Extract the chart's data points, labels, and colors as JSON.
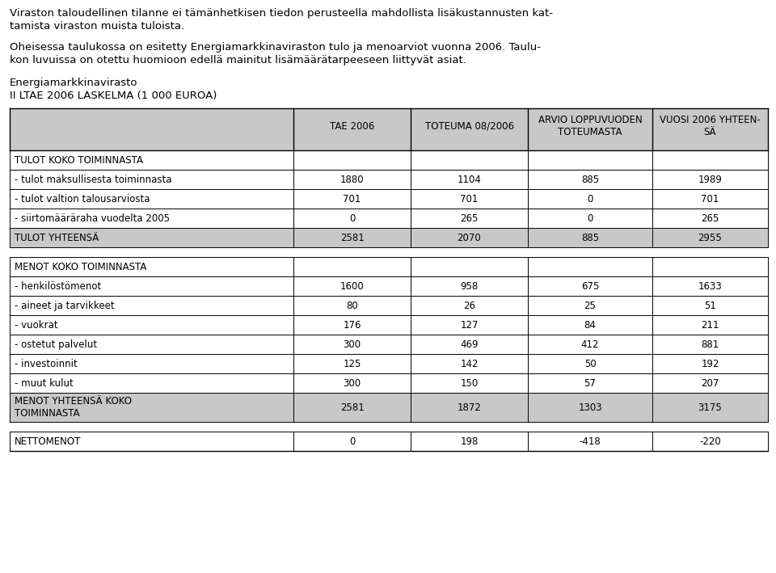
{
  "title_line1": "Energiamarkkinavirasto",
  "title_line2": "II LTAE 2006 LASKELMA (1 000 EUROA)",
  "col_headers": [
    "",
    "TAE 2006",
    "TOTEUMA 08/2006",
    "ARVIO LOPPUVUODEN\nTOTEUMASTA",
    "VUOSI 2006 YHTEEN-\nSÄ"
  ],
  "rows": [
    {
      "label": "TULOT KOKO TOIMINNASTA",
      "values": [
        null,
        null,
        null,
        null
      ],
      "style": "section_header"
    },
    {
      "label": "- tulot maksullisesta toiminnasta",
      "values": [
        1880,
        1104,
        885,
        1989
      ],
      "style": "normal"
    },
    {
      "label": "- tulot valtion talousarviosta",
      "values": [
        701,
        701,
        0,
        701
      ],
      "style": "normal"
    },
    {
      "label": "- siirtomääräraha vuodelta 2005",
      "values": [
        0,
        265,
        0,
        265
      ],
      "style": "normal"
    },
    {
      "label": "TULOT YHTEENSÄ",
      "values": [
        2581,
        2070,
        885,
        2955
      ],
      "style": "subtotal"
    },
    {
      "label": "",
      "values": [
        null,
        null,
        null,
        null
      ],
      "style": "spacer"
    },
    {
      "label": "MENOT KOKO TOIMINNASTA",
      "values": [
        null,
        null,
        null,
        null
      ],
      "style": "section_header"
    },
    {
      "label": "- henkilöstömenot",
      "values": [
        1600,
        958,
        675,
        1633
      ],
      "style": "normal"
    },
    {
      "label": "- aineet ja tarvikkeet",
      "values": [
        80,
        26,
        25,
        51
      ],
      "style": "normal"
    },
    {
      "label": "- vuokrat",
      "values": [
        176,
        127,
        84,
        211
      ],
      "style": "normal"
    },
    {
      "label": "- ostetut palvelut",
      "values": [
        300,
        469,
        412,
        881
      ],
      "style": "normal"
    },
    {
      "label": "- investoinnit",
      "values": [
        125,
        142,
        50,
        192
      ],
      "style": "normal"
    },
    {
      "label": "- muut kulut",
      "values": [
        300,
        150,
        57,
        207
      ],
      "style": "normal"
    },
    {
      "label": "MENOT YHTEENSÄ KOKO\nTOIMINNASTA",
      "values": [
        2581,
        1872,
        1303,
        3175
      ],
      "style": "subtotal"
    },
    {
      "label": "",
      "values": [
        null,
        null,
        null,
        null
      ],
      "style": "spacer"
    },
    {
      "label": "NETTOMENOT",
      "values": [
        0,
        198,
        -418,
        -220
      ],
      "style": "normal"
    }
  ],
  "header_bg": "#c8c8c8",
  "subtotal_bg": "#c8c8c8",
  "normal_bg": "#ffffff",
  "outer_bg": "#ffffff",
  "text_color": "#000000",
  "border_color": "#000000",
  "intro_lines": [
    "Viraston taloudellinen tilanne ei tämänhetkisen tiedon perusteella mahdollista lisäkustannusten kat-",
    "tamista viraston muista tuloista.",
    "",
    "Oheisessa taulukossa on esitetty Energiamarkkinaviraston tulo ja menoarviot vuonna 2006. Taulu-",
    "kon luvuissa on otettu huomioon edellä mainitut lisämäärätarpeeseen liittyvät asiat."
  ]
}
